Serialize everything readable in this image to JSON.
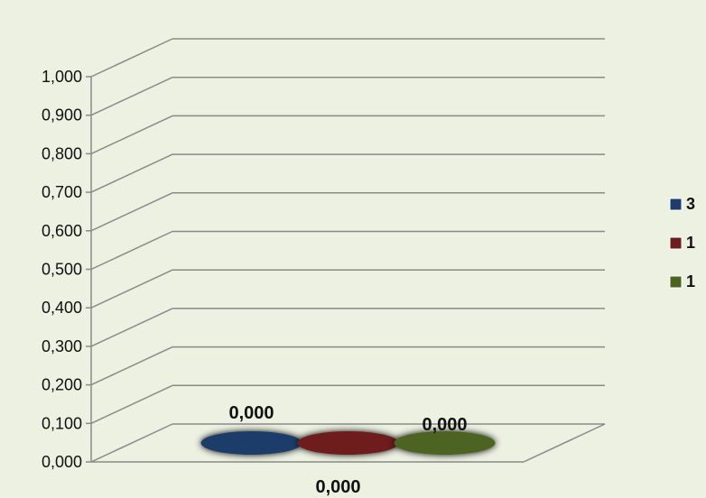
{
  "chart_data": {
    "type": "bar",
    "categories": [
      "0,000"
    ],
    "series": [
      {
        "name": "3",
        "values": [
          0
        ],
        "color": "#1f3d6b"
      },
      {
        "name": "1",
        "values": [
          0
        ],
        "color": "#6e1c1e"
      },
      {
        "name": "1",
        "values": [
          0
        ],
        "color": "#4d6320"
      }
    ],
    "data_labels": [
      "0,000",
      "",
      "0,000"
    ],
    "y_ticks": [
      "0,000",
      "0,100",
      "0,200",
      "0,300",
      "0,400",
      "0,500",
      "0,600",
      "0,700",
      "0,800",
      "0,900",
      "1,000"
    ],
    "ylim": [
      0,
      1
    ],
    "grid": true,
    "three_d": true,
    "legend_position": "right",
    "background_color": "#edf1e2"
  }
}
